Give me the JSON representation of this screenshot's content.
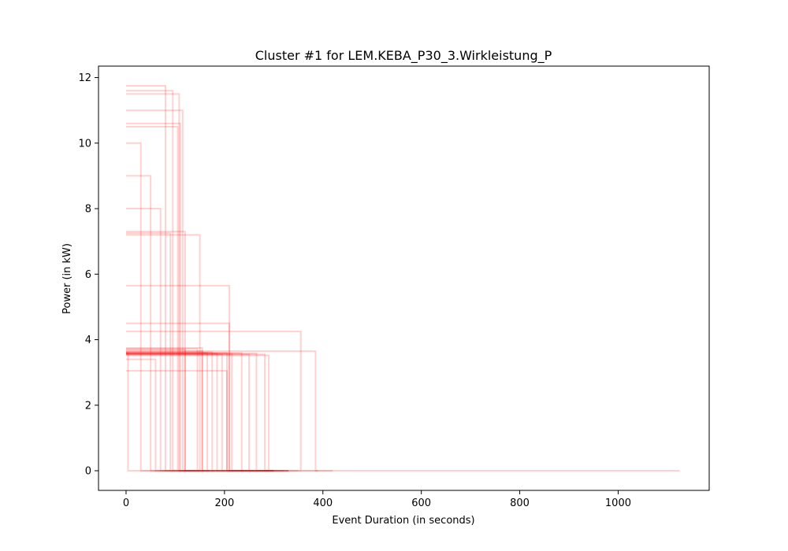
{
  "chart_data": {
    "type": "line",
    "title": "Cluster #1 for LEM.KEBA_P30_3.Wirkleistung_P",
    "xlabel": "Event Duration (in seconds)",
    "ylabel": "Power (in kW)",
    "xlim": [
      -56,
      1185
    ],
    "ylim": [
      -0.6,
      12.35
    ],
    "xticks": [
      0,
      200,
      400,
      600,
      800,
      1000
    ],
    "yticks": [
      0,
      2,
      4,
      6,
      8,
      10,
      12
    ],
    "grid": false,
    "legend": "none",
    "line_color": "#ff0000",
    "series": [
      {
        "x": [
          0,
          4,
          4,
          1125
        ],
        "y": [
          3.6,
          3.6,
          0,
          0
        ]
      },
      {
        "x": [
          0,
          155,
          155,
          355
        ],
        "y": [
          3.65,
          3.65,
          0,
          0
        ]
      },
      {
        "x": [
          0,
          165,
          165,
          300
        ],
        "y": [
          3.6,
          3.6,
          0,
          0
        ]
      },
      {
        "x": [
          0,
          175,
          175,
          330
        ],
        "y": [
          3.62,
          3.62,
          0,
          0
        ]
      },
      {
        "x": [
          0,
          185,
          185,
          300
        ],
        "y": [
          3.58,
          3.58,
          0,
          0
        ]
      },
      {
        "x": [
          0,
          195,
          195,
          290
        ],
        "y": [
          3.55,
          3.55,
          0,
          0
        ]
      },
      {
        "x": [
          0,
          205,
          205,
          330
        ],
        "y": [
          3.6,
          3.6,
          0,
          0
        ]
      },
      {
        "x": [
          0,
          215,
          215,
          300
        ],
        "y": [
          3.57,
          3.57,
          0,
          0
        ]
      },
      {
        "x": [
          0,
          235,
          235,
          300
        ],
        "y": [
          3.6,
          3.6,
          0,
          0
        ]
      },
      {
        "x": [
          0,
          250,
          250,
          320
        ],
        "y": [
          3.55,
          3.55,
          0,
          0
        ]
      },
      {
        "x": [
          0,
          265,
          265,
          330
        ],
        "y": [
          3.58,
          3.58,
          0,
          0
        ]
      },
      {
        "x": [
          0,
          282,
          282,
          300
        ],
        "y": [
          3.55,
          3.55,
          0,
          0
        ]
      },
      {
        "x": [
          0,
          290,
          290,
          350
        ],
        "y": [
          3.52,
          3.52,
          0,
          0
        ]
      },
      {
        "x": [
          0,
          385,
          385,
          420
        ],
        "y": [
          3.65,
          3.65,
          0,
          0
        ]
      },
      {
        "x": [
          0,
          355,
          355,
          390
        ],
        "y": [
          4.25,
          4.25,
          0,
          0
        ]
      },
      {
        "x": [
          0,
          145,
          145,
          200
        ],
        "y": [
          3.72,
          3.72,
          0,
          0
        ]
      },
      {
        "x": [
          0,
          155,
          155,
          210
        ],
        "y": [
          3.75,
          3.75,
          0,
          0
        ]
      },
      {
        "x": [
          0,
          120,
          120,
          180
        ],
        "y": [
          3.7,
          3.7,
          0,
          0
        ]
      },
      {
        "x": [
          0,
          205,
          205,
          240
        ],
        "y": [
          3.05,
          3.05,
          0,
          0
        ]
      },
      {
        "x": [
          0,
          210,
          210,
          240
        ],
        "y": [
          4.5,
          4.5,
          0,
          0
        ]
      },
      {
        "x": [
          0,
          210,
          210,
          260
        ],
        "y": [
          5.65,
          5.65,
          0,
          0
        ]
      },
      {
        "x": [
          0,
          105,
          105,
          160
        ],
        "y": [
          10.5,
          10.5,
          0,
          0
        ]
      },
      {
        "x": [
          0,
          110,
          110,
          170
        ],
        "y": [
          10.6,
          10.6,
          0,
          0
        ]
      },
      {
        "x": [
          0,
          115,
          115,
          160
        ],
        "y": [
          11.0,
          11.0,
          0,
          0
        ]
      },
      {
        "x": [
          0,
          108,
          108,
          150
        ],
        "y": [
          11.5,
          11.5,
          0,
          0
        ]
      },
      {
        "x": [
          0,
          95,
          95,
          150
        ],
        "y": [
          11.6,
          11.6,
          0,
          0
        ]
      },
      {
        "x": [
          0,
          80,
          80,
          140
        ],
        "y": [
          11.75,
          11.75,
          0,
          0
        ]
      },
      {
        "x": [
          0,
          90,
          90,
          150
        ],
        "y": [
          7.25,
          7.25,
          0,
          0
        ]
      },
      {
        "x": [
          0,
          120,
          120,
          170
        ],
        "y": [
          7.3,
          7.3,
          0,
          0
        ]
      },
      {
        "x": [
          0,
          150,
          150,
          190
        ],
        "y": [
          7.2,
          7.2,
          0,
          0
        ]
      },
      {
        "x": [
          0,
          60,
          60,
          120
        ],
        "y": [
          3.4,
          3.4,
          0,
          0
        ]
      },
      {
        "x": [
          0,
          30,
          30,
          90
        ],
        "y": [
          10.0,
          10.0,
          0,
          0
        ]
      },
      {
        "x": [
          0,
          50,
          50,
          100
        ],
        "y": [
          9.0,
          9.0,
          0,
          0
        ]
      },
      {
        "x": [
          0,
          70,
          70,
          110
        ],
        "y": [
          8.0,
          8.0,
          0,
          0
        ]
      }
    ]
  }
}
